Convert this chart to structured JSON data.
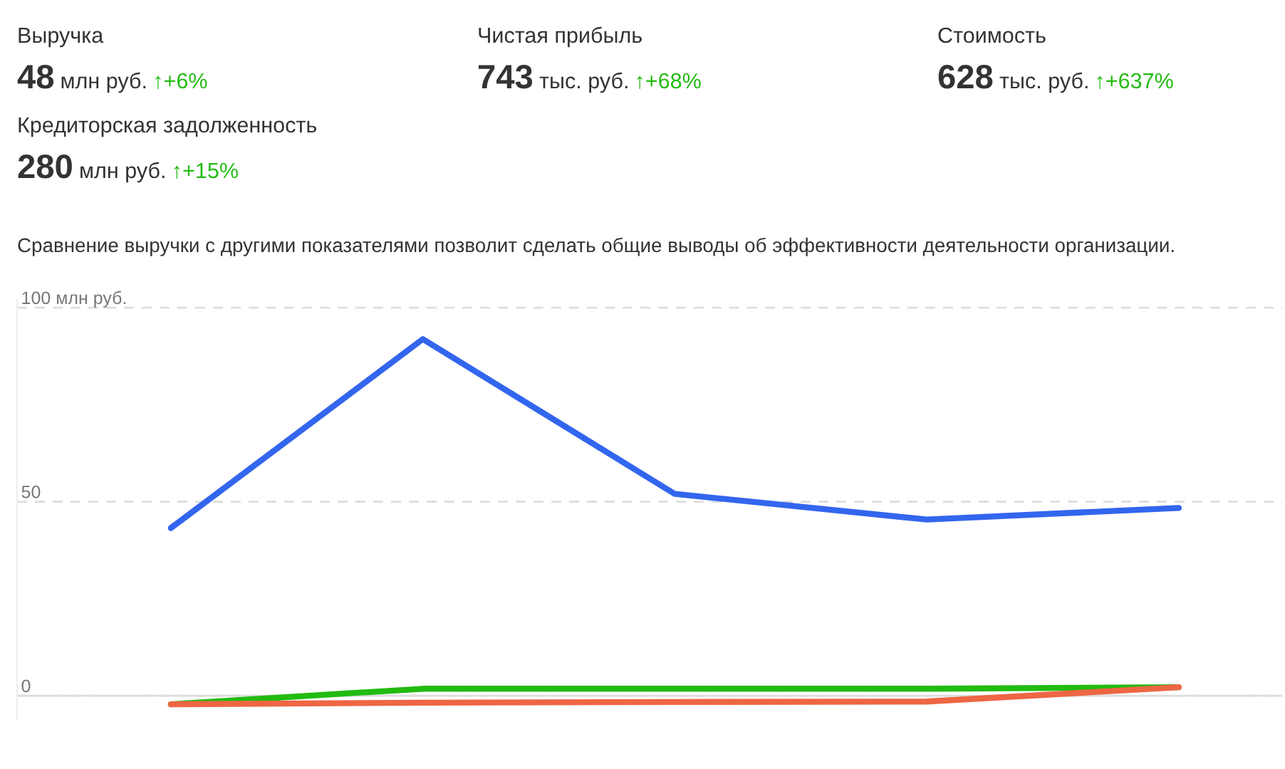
{
  "chart_data": [
    {
      "type": "other",
      "annotations": [
        "Выручка",
        "48",
        "млн руб.",
        "↑+6%",
        "Чистая прибыль",
        "743",
        "тыс. руб.",
        "↑+68%",
        "Стоимость",
        "628",
        "тыс. руб.",
        "↑+637%",
        "Кредиторская задолженность",
        "280",
        "млн руб.",
        "↑+15%"
      ]
    },
    {
      "type": "line",
      "title": "Сравнение выручки с другими показателями позволит сделать общие выводы об эффективности деятельности организации.",
      "categories": [
        null,
        null,
        null,
        null,
        null
      ],
      "series": [
        {
          "color": "#3366ee",
          "values": [
            43.2,
            91.9,
            52,
            45.4,
            48.4
          ]
        },
        {
          "color": "#22bb11",
          "values": [
            -2.2,
            1.8,
            1.8,
            1.8,
            2.2
          ]
        },
        {
          "color": "#ee6644",
          "values": [
            -2.2,
            -1.8,
            -1.6,
            -1.5,
            2.2
          ]
        }
      ],
      "ylim": [
        -6,
        102
      ],
      "yticks": [
        0,
        50,
        {
          "value": 100,
          "label": "100 млн руб."
        }
      ],
      "grid": "y",
      "ref_lines": [
        {
          "axis": "y",
          "value": 0,
          "color": "#dddddd",
          "line_style": "solid"
        }
      ],
      "marker": "none",
      "line_style": "solid"
    }
  ]
}
